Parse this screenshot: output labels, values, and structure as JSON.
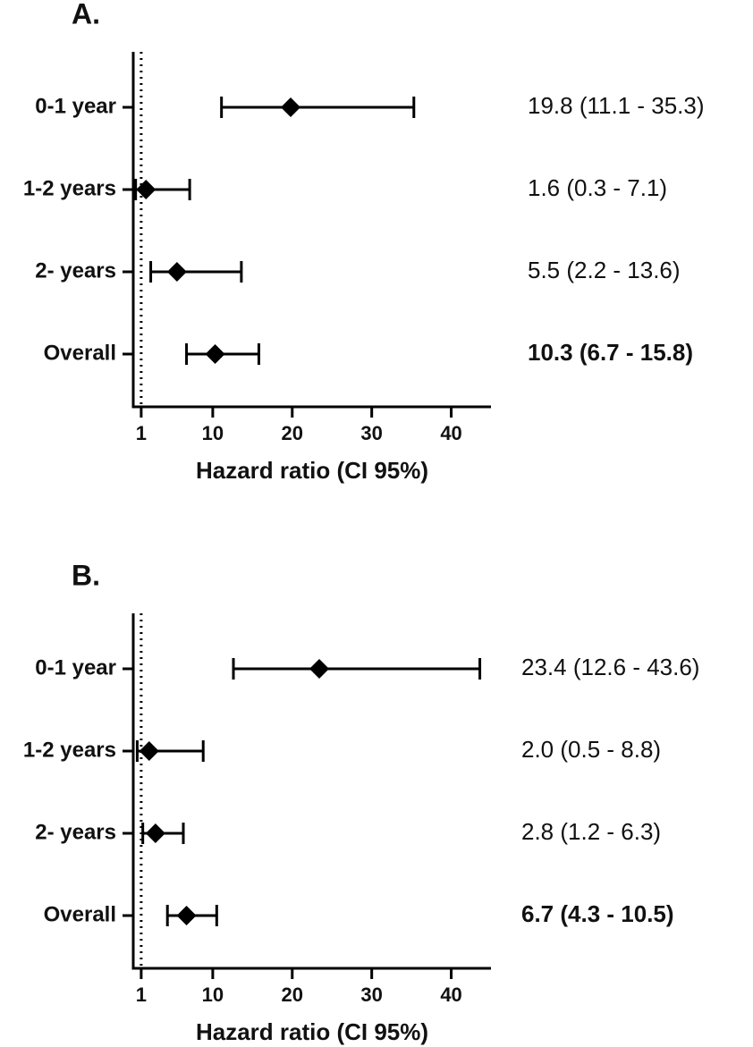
{
  "chart_data": [
    {
      "type": "forest",
      "title": "A.",
      "categories": [
        "0-1 year",
        "1-2 years",
        "2- years",
        "Overall"
      ],
      "values": [
        19.8,
        1.6,
        5.5,
        10.3
      ],
      "ci_low": [
        11.1,
        0.3,
        2.2,
        6.7
      ],
      "ci_high": [
        35.3,
        7.1,
        13.6,
        15.8
      ],
      "value_labels": [
        "19.8 (11.1 - 35.3)",
        "1.6 (0.3 - 7.1)",
        "5.5 (2.2 - 13.6)",
        "10.3 (6.7 - 15.8)"
      ],
      "xlim": [
        0,
        45
      ],
      "xticks": [
        1,
        10,
        20,
        30,
        40
      ],
      "reference": 1,
      "xlabel": "Hazard ratio (CI 95%)",
      "color": "#000000"
    },
    {
      "type": "forest",
      "title": "B.",
      "categories": [
        "0-1 year",
        "1-2 years",
        "2- years",
        "Overall"
      ],
      "values": [
        23.4,
        2.0,
        2.8,
        6.7
      ],
      "ci_low": [
        12.6,
        0.5,
        1.2,
        4.3
      ],
      "ci_high": [
        43.6,
        8.8,
        6.3,
        10.5
      ],
      "value_labels": [
        "23.4 (12.6 - 43.6)",
        "2.0 (0.5 - 8.8)",
        "2.8 (1.2 - 6.3)",
        "6.7 (4.3 - 10.5)"
      ],
      "xlim": [
        0,
        45
      ],
      "xticks": [
        1,
        10,
        20,
        30,
        40
      ],
      "reference": 1,
      "xlabel": "Hazard ratio (CI 95%)",
      "color": "#000000"
    }
  ]
}
